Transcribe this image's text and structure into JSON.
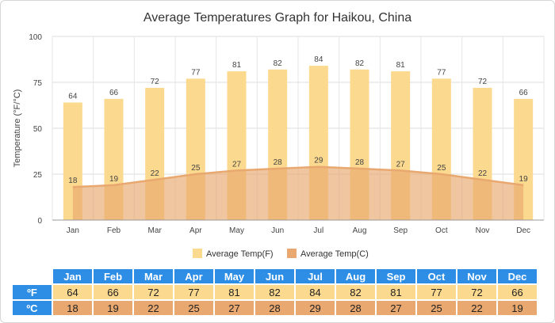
{
  "chart_data": {
    "type": "bar",
    "title": "Average Temperatures Graph for Haikou, China",
    "ylabel": "Temperature (°F/°C)",
    "xlabel": "",
    "ylim": [
      0,
      100
    ],
    "yticks": [
      0,
      25,
      50,
      75,
      100
    ],
    "grid": true,
    "legend_position": "bottom",
    "categories": [
      "Jan",
      "Feb",
      "Mar",
      "Apr",
      "May",
      "Jun",
      "Jul",
      "Aug",
      "Sep",
      "Oct",
      "Nov",
      "Dec"
    ],
    "series": [
      {
        "name": "Average Temp(F)",
        "type": "bar",
        "color": "#fbd98e",
        "values": [
          64,
          66,
          72,
          77,
          81,
          82,
          84,
          82,
          81,
          77,
          72,
          66
        ]
      },
      {
        "name": "Average Temp(C)",
        "type": "area",
        "color": "#e8a86f",
        "values": [
          18,
          19,
          22,
          25,
          27,
          28,
          29,
          28,
          27,
          25,
          22,
          19
        ]
      }
    ]
  },
  "table": {
    "unit_f": "ºF",
    "unit_c": "ºC",
    "header_color": "#2e8ee6"
  }
}
